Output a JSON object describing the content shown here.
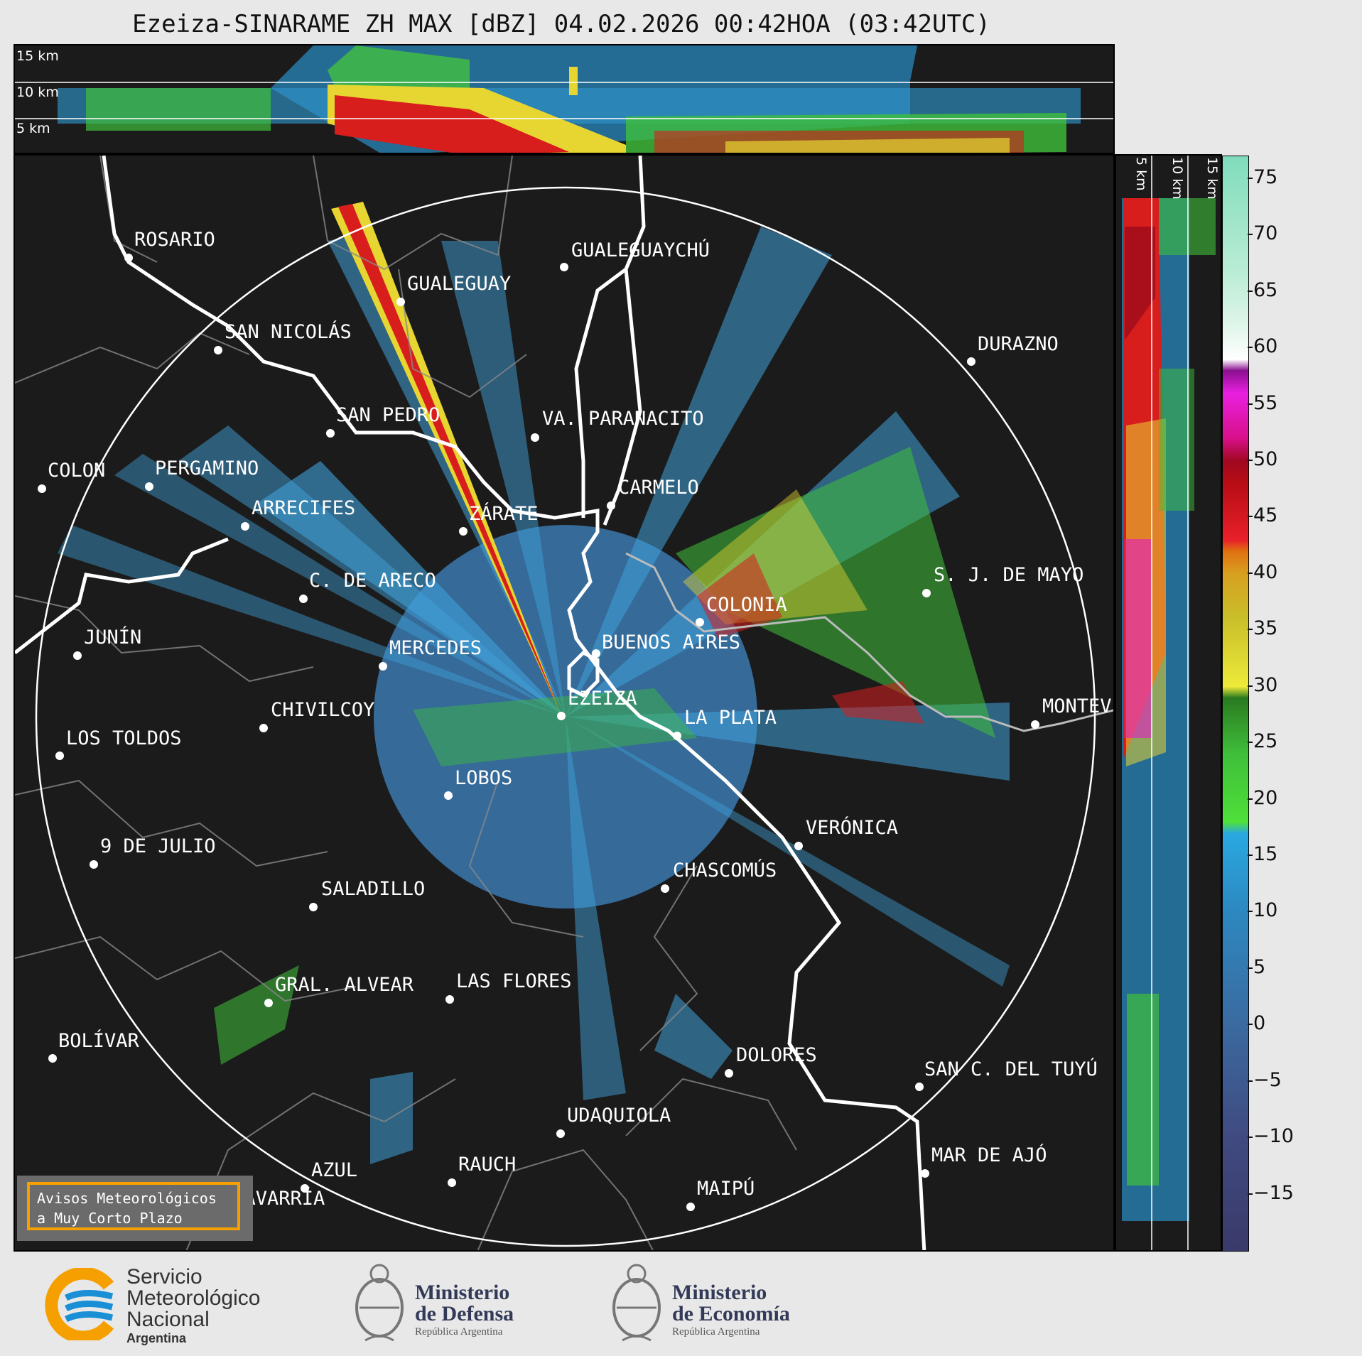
{
  "title": "Ezeiza-SINARAME ZH MAX [dBZ] 04.02.2026 00:42HOA (03:42UTC)",
  "height_labels_top": [
    "15 km",
    "10 km",
    "5 km"
  ],
  "height_labels_side": [
    "5 km",
    "10 km",
    "15 km"
  ],
  "cities": [
    {
      "name": "ROSARIO"
    },
    {
      "name": "GUALEGUAYCHÚ"
    },
    {
      "name": "GUALEGUAY"
    },
    {
      "name": "SAN NICOLÁS"
    },
    {
      "name": "DURAZNO"
    },
    {
      "name": "SAN PEDRO"
    },
    {
      "name": "VA. PARANACITO"
    },
    {
      "name": "COLON"
    },
    {
      "name": "PERGAMINO"
    },
    {
      "name": "CARMELO"
    },
    {
      "name": "ARRECIFES"
    },
    {
      "name": "ZÁRATE"
    },
    {
      "name": "S. J. DE MAYO"
    },
    {
      "name": "C. DE ARECO"
    },
    {
      "name": "COLONIA"
    },
    {
      "name": "JUNÍN"
    },
    {
      "name": "BUENOS AIRES"
    },
    {
      "name": "MERCEDES"
    },
    {
      "name": "EZEIZA"
    },
    {
      "name": "MONTEVIDEO"
    },
    {
      "name": "CHIVILCOY"
    },
    {
      "name": "LA PLATA"
    },
    {
      "name": "LOS TOLDOS"
    },
    {
      "name": "LOBOS"
    },
    {
      "name": "VERÓNICA"
    },
    {
      "name": "9 DE JULIO"
    },
    {
      "name": "CHASCOMÚS"
    },
    {
      "name": "SALADILLO"
    },
    {
      "name": "GRAL. ALVEAR"
    },
    {
      "name": "LAS FLORES"
    },
    {
      "name": "BOLÍVAR"
    },
    {
      "name": "DOLORES"
    },
    {
      "name": "SAN C. DEL TUYÚ"
    },
    {
      "name": "UDAQUIOLA"
    },
    {
      "name": "MAR DE AJÓ"
    },
    {
      "name": "AZUL"
    },
    {
      "name": "RAUCH"
    },
    {
      "name": "OLAVARRÍA"
    },
    {
      "name": "MAIPÚ"
    }
  ],
  "colorbar": {
    "ticks": [
      "75",
      "70",
      "65",
      "60",
      "55",
      "50",
      "45",
      "40",
      "35",
      "30",
      "25",
      "20",
      "15",
      "10",
      "5",
      "0",
      "−5",
      "−10",
      "−15"
    ],
    "range": [
      -20,
      77
    ]
  },
  "notice": {
    "line1": "Avisos Meteorológicos",
    "line2": "a Muy Corto Plazo"
  },
  "footer": {
    "smn": {
      "line1": "Servicio",
      "line2": "Meteorológico",
      "line3": "Nacional",
      "sub": "Argentina"
    },
    "defensa": {
      "line1": "Ministerio",
      "line2": "de Defensa",
      "sub": "República Argentina"
    },
    "economia": {
      "line1": "Ministerio",
      "line2": "de Economía",
      "sub": "República Argentina"
    }
  },
  "colors": {
    "background": "#1b1b1b",
    "page": "#e8e8e8",
    "notice_border": "#f5a000",
    "smn_blue": "#1a8fd6",
    "smn_orange": "#f5a000"
  }
}
